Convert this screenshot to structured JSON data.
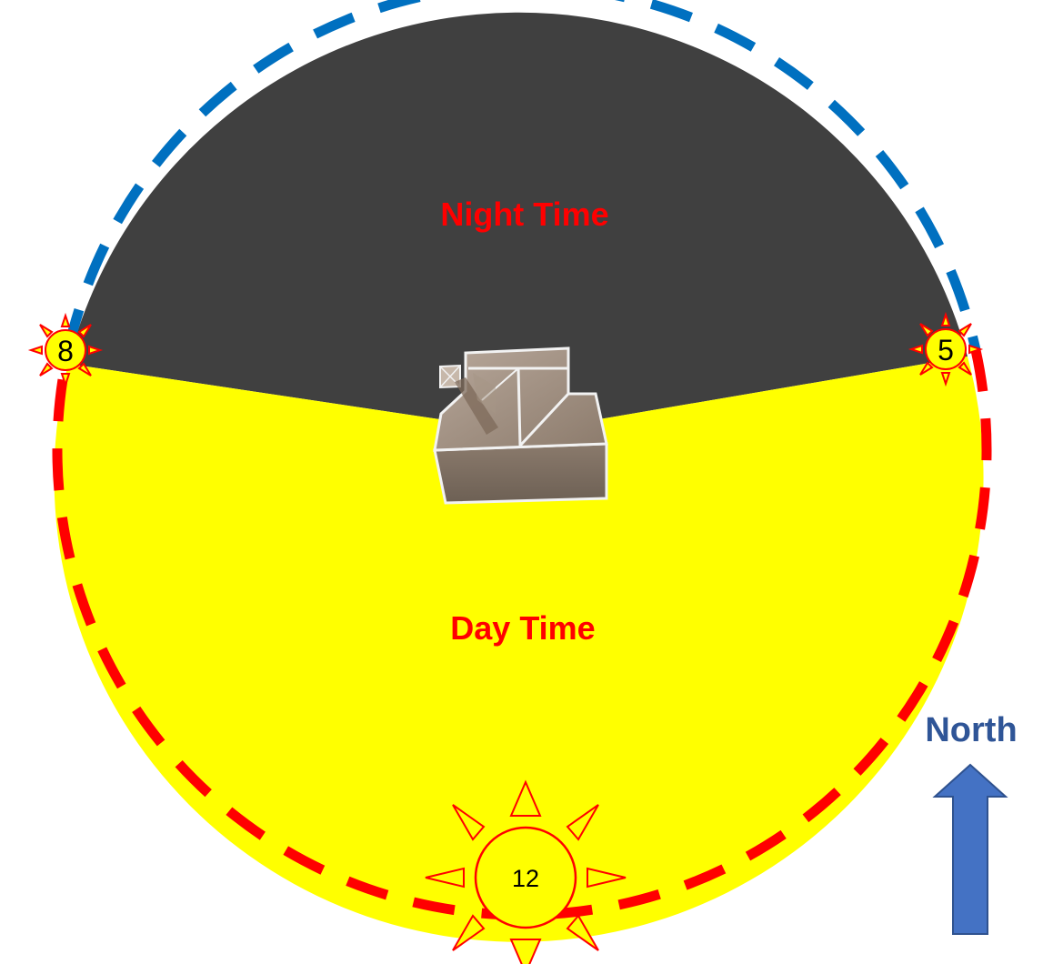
{
  "zones": {
    "night_label": "Night Time",
    "day_label": "Day Time"
  },
  "suns": {
    "sunrise_label": "8",
    "sunset_label": "5",
    "noon_label": "12"
  },
  "compass": {
    "label": "North",
    "arrow_icon": "north-arrow-icon"
  },
  "house_icon": "house-icon",
  "colors": {
    "night_fill": "#404040",
    "day_fill": "#ffff00",
    "night_path_dash": "#0070c0",
    "day_path_dash": "#ff0000",
    "label_text": "#ff0000",
    "north_text": "#2f5597",
    "north_arrow": "#4472c4",
    "sun_fill": "#ffff00",
    "sun_stroke": "#ff0000"
  }
}
